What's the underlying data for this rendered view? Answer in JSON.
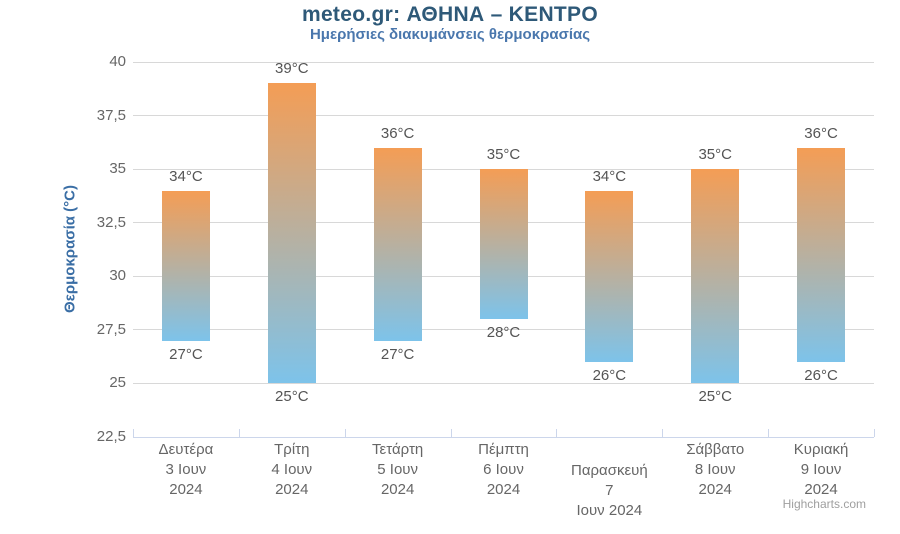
{
  "chart_data": {
    "type": "columnrange",
    "title": "meteo.gr: ΑΘΗΝΑ – ΚΕΝΤΡΟ",
    "subtitle": "Ημερήσιες διακυμάνσεις θερμοκρασίας",
    "ylabel": "Θερμοκρασία (°C)",
    "xlabel": "",
    "ylim": [
      22.5,
      40
    ],
    "grid": true,
    "legend": false,
    "unit": "°C",
    "categories": [
      {
        "lines": [
          "Δευτέρα",
          "3 Ιουν",
          "2024"
        ]
      },
      {
        "lines": [
          "Τρίτη",
          "4 Ιουν",
          "2024"
        ]
      },
      {
        "lines": [
          "Τετάρτη",
          "5 Ιουν",
          "2024"
        ]
      },
      {
        "lines": [
          "Πέμπτη",
          "6 Ιουν",
          "2024"
        ]
      },
      {
        "lines": [
          "Παρασκευή",
          "7",
          "Ιουν 2024"
        ]
      },
      {
        "lines": [
          "Σάββατο",
          "8 Ιουν",
          "2024"
        ]
      },
      {
        "lines": [
          "Κυριακή",
          "9 Ιουν",
          "2024"
        ]
      }
    ],
    "series": [
      {
        "low": [
          27,
          25,
          27,
          28,
          26,
          25,
          26
        ],
        "high": [
          34,
          39,
          36,
          35,
          34,
          35,
          36
        ]
      }
    ],
    "yticks": [
      {
        "value": 40,
        "label": "40"
      },
      {
        "value": 37.5,
        "label": "37,5"
      },
      {
        "value": 35,
        "label": "35"
      },
      {
        "value": 32.5,
        "label": "32,5"
      },
      {
        "value": 30,
        "label": "30"
      },
      {
        "value": 27.5,
        "label": "27,5"
      },
      {
        "value": 25,
        "label": "25"
      },
      {
        "value": 22.5,
        "label": "22,5"
      }
    ],
    "credits": "Highcharts.com",
    "colors": {
      "bar_gradient_top": "#f49d55",
      "bar_gradient_bottom": "#7dc3ea",
      "title": "#2e5978",
      "subtitle": "#4a77ad",
      "y_axis_title": "#3a6ea5",
      "tick_label": "#666666",
      "data_label": "#545454",
      "gridline": "#d8d8d8",
      "axis_line": "#ccd6eb",
      "credits": "#9f9f9f"
    }
  }
}
